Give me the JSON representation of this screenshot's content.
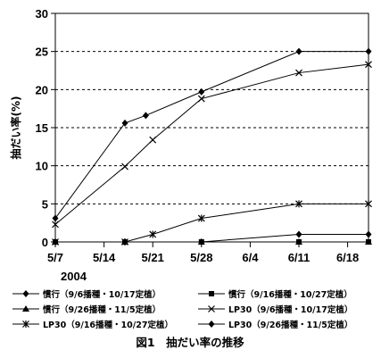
{
  "chart_data": {
    "type": "line",
    "title": "",
    "caption": "図1　抽だい率の推移",
    "ylabel": "抽だい率(%)",
    "xlabel": "",
    "year_label": "2004",
    "ylim": [
      0,
      30
    ],
    "yticks": [
      0,
      5,
      10,
      15,
      20,
      25,
      30
    ],
    "x_ticks": [
      {
        "label": "5/7",
        "date": "2004-05-07"
      },
      {
        "label": "5/14",
        "date": "2004-05-14"
      },
      {
        "label": "5/21",
        "date": "2004-05-21"
      },
      {
        "label": "5/28",
        "date": "2004-05-28"
      },
      {
        "label": "6/4",
        "date": "2004-06-04"
      },
      {
        "label": "6/11",
        "date": "2004-06-11"
      },
      {
        "label": "6/18",
        "date": "2004-06-18"
      }
    ],
    "x_range": [
      "2004-05-07",
      "2004-06-21"
    ],
    "grid": "horizontal dashed",
    "legend_position": "bottom",
    "series": [
      {
        "name": "慣行（9/6播種・10/17定植）",
        "marker": "diamond",
        "x": [
          "2004-05-07",
          "2004-05-17",
          "2004-05-20",
          "2004-05-28",
          "2004-06-11",
          "2004-06-21"
        ],
        "values": [
          3.1,
          15.6,
          16.6,
          19.7,
          25.0,
          25.0
        ]
      },
      {
        "name": "慣行（9/16播種・10/27定植）",
        "marker": "square",
        "x": [
          "2004-05-07",
          "2004-05-17",
          "2004-05-28",
          "2004-06-11",
          "2004-06-21"
        ],
        "values": [
          0,
          0,
          0,
          0,
          0
        ]
      },
      {
        "name": "慣行（9/26播種・11/5定植）",
        "marker": "triangle",
        "x": [
          "2004-05-07",
          "2004-05-17",
          "2004-05-28",
          "2004-06-11",
          "2004-06-21"
        ],
        "values": [
          0,
          0,
          0,
          0,
          0
        ]
      },
      {
        "name": "LP30（9/6播種・10/17定植）",
        "marker": "x",
        "x": [
          "2004-05-07",
          "2004-05-17",
          "2004-05-21",
          "2004-05-28",
          "2004-06-11",
          "2004-06-21"
        ],
        "values": [
          2.3,
          9.9,
          13.4,
          18.8,
          22.2,
          23.3
        ]
      },
      {
        "name": "LP30（9/16播種・10/27定植）",
        "marker": "asterisk",
        "x": [
          "2004-05-07",
          "2004-05-17",
          "2004-05-21",
          "2004-05-28",
          "2004-06-11",
          "2004-06-21"
        ],
        "values": [
          0,
          0,
          1.0,
          3.1,
          5.0,
          5.0
        ]
      },
      {
        "name": "LP30（9/26播種・11/5定植）",
        "marker": "diamond",
        "x": [
          "2004-05-07",
          "2004-05-17",
          "2004-05-28",
          "2004-06-11",
          "2004-06-21"
        ],
        "values": [
          0,
          0,
          0,
          1.0,
          1.0
        ]
      }
    ]
  }
}
